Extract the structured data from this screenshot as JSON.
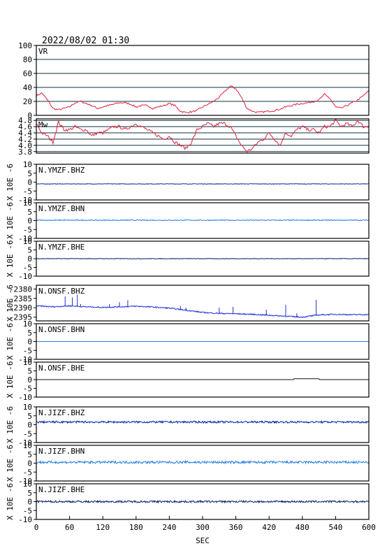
{
  "header": {
    "datetime": "2022/08/02 01:30"
  },
  "chart_data": {
    "type": "line",
    "x_unit_label": "SEC",
    "xlim": [
      0,
      600
    ],
    "xticks": [
      0,
      60,
      120,
      180,
      240,
      300,
      360,
      420,
      480,
      540,
      600
    ],
    "panels": [
      {
        "id": "vr",
        "label": "VR",
        "color": "#e0203a",
        "ylim": [
          0,
          100
        ],
        "yticks": [
          0,
          20,
          40,
          60,
          80,
          100
        ],
        "ytick_labels": [
          "0",
          "20",
          "40",
          "60",
          "80",
          "100"
        ],
        "grid": true,
        "ylabel": "",
        "series": {
          "x": [
            0,
            10,
            20,
            30,
            40,
            50,
            60,
            70,
            80,
            90,
            100,
            110,
            120,
            130,
            140,
            150,
            160,
            170,
            180,
            190,
            200,
            210,
            220,
            230,
            240,
            250,
            260,
            270,
            280,
            290,
            300,
            310,
            320,
            330,
            340,
            350,
            360,
            370,
            380,
            390,
            400,
            410,
            420,
            430,
            440,
            450,
            460,
            470,
            480,
            490,
            500,
            510,
            520,
            530,
            540,
            550,
            560,
            570,
            580,
            590,
            600
          ],
          "y": [
            28,
            32,
            22,
            10,
            8,
            10,
            12,
            18,
            20,
            17,
            14,
            10,
            12,
            14,
            16,
            18,
            18,
            16,
            12,
            14,
            14,
            10,
            12,
            14,
            17,
            14,
            6,
            4,
            5,
            7,
            12,
            16,
            20,
            26,
            34,
            42,
            38,
            26,
            10,
            6,
            4,
            5,
            6,
            7,
            9,
            12,
            14,
            16,
            17,
            18,
            20,
            22,
            30,
            24,
            12,
            10,
            14,
            18,
            22,
            28,
            35
          ]
        }
      },
      {
        "id": "mw",
        "label": "Mw",
        "color": "#e0203a",
        "ylim": [
          3.75,
          4.85
        ],
        "yticks": [
          3.8,
          4.0,
          4.2,
          4.4,
          4.6,
          4.8
        ],
        "ytick_labels": [
          "3.8",
          "4.0",
          "4.2",
          "4.4",
          "4.6",
          "4.8"
        ],
        "grid": true,
        "ylabel": "",
        "series": {
          "x": [
            0,
            10,
            20,
            30,
            40,
            50,
            60,
            70,
            80,
            90,
            100,
            110,
            120,
            130,
            140,
            150,
            160,
            170,
            180,
            190,
            200,
            210,
            220,
            230,
            240,
            250,
            260,
            270,
            280,
            290,
            300,
            310,
            320,
            330,
            340,
            350,
            360,
            370,
            380,
            390,
            400,
            410,
            420,
            430,
            440,
            450,
            460,
            470,
            480,
            490,
            500,
            510,
            520,
            530,
            540,
            550,
            560,
            570,
            580,
            590,
            600
          ],
          "y": [
            4.7,
            4.4,
            4.3,
            4.1,
            4.75,
            4.5,
            4.5,
            4.6,
            4.5,
            4.5,
            4.3,
            4.4,
            4.4,
            4.5,
            4.6,
            4.6,
            4.5,
            4.6,
            4.7,
            4.6,
            4.5,
            4.4,
            4.3,
            4.2,
            4.3,
            4.1,
            4.0,
            3.9,
            4.1,
            4.5,
            4.6,
            4.7,
            4.6,
            4.7,
            4.7,
            4.6,
            4.3,
            4.0,
            3.8,
            3.9,
            4.1,
            4.2,
            4.4,
            4.2,
            4.0,
            4.4,
            4.3,
            4.5,
            4.6,
            4.5,
            4.5,
            4.4,
            4.6,
            4.6,
            4.8,
            4.6,
            4.7,
            4.6,
            4.8,
            4.6,
            4.6
          ]
        }
      },
      {
        "id": "ymzf_bhz",
        "label": "N.YMZF.BHZ",
        "color": "#0a2aa8",
        "ylim": [
          -10,
          10
        ],
        "yticks": [
          -10,
          -5,
          0,
          5,
          10
        ],
        "ytick_labels": [
          "-10",
          "-5",
          "0",
          "5",
          "10"
        ],
        "ylabel": "X 10E -6",
        "baseline": -1.0,
        "noise": 0.15,
        "spikes": []
      },
      {
        "id": "ymzf_bhn",
        "label": "N.YMZF.BHN",
        "color": "#2a7fe0",
        "ylim": [
          -10,
          10
        ],
        "yticks": [
          -10,
          -5,
          0,
          5,
          10
        ],
        "ytick_labels": [
          "-10",
          "-5",
          "0",
          "5",
          "10"
        ],
        "ylabel": "X 10E -6",
        "baseline": 0.2,
        "noise": 0.25,
        "spikes": []
      },
      {
        "id": "ymzf_bhe",
        "label": "N.YMZF.BHE",
        "color": "#0a1f6e",
        "ylim": [
          -10,
          10
        ],
        "yticks": [
          -10,
          -5,
          0,
          5,
          10
        ],
        "ytick_labels": [
          "-10",
          "-5",
          "0",
          "5",
          "10"
        ],
        "ylabel": "X 10E -6",
        "baseline": 0.0,
        "noise": 0.15,
        "spikes": []
      },
      {
        "id": "onsf_bhz",
        "label": "N.ONSF.BHZ",
        "color": "#1e2fd0",
        "ylim": [
          -2397,
          -2378
        ],
        "yticks": [
          -2395,
          -2390,
          -2385,
          -2380
        ],
        "ytick_labels": [
          "-2395",
          "-2390",
          "-2385",
          "-2380"
        ],
        "ylabel": "X 10E -6",
        "trend_x": [
          0,
          30,
          60,
          90,
          120,
          150,
          180,
          210,
          240,
          270,
          300,
          330,
          360,
          390,
          420,
          450,
          480,
          510,
          540,
          570,
          600
        ],
        "trend_y": [
          -2389,
          -2389.5,
          -2389,
          -2389.5,
          -2389.8,
          -2389.5,
          -2389.2,
          -2389.6,
          -2390.2,
          -2391.3,
          -2392.5,
          -2393,
          -2393.2,
          -2393.5,
          -2394,
          -2394.5,
          -2395,
          -2393.8,
          -2393.5,
          -2393.7,
          -2393.6
        ],
        "noise": 0.3,
        "spikes": [
          [
            52,
            -2384
          ],
          [
            65,
            -2384.5
          ],
          [
            74,
            -2383
          ],
          [
            80,
            -2388
          ],
          [
            132,
            -2388
          ],
          [
            150,
            -2387
          ],
          [
            165,
            -2386
          ],
          [
            260,
            -2389
          ],
          [
            270,
            -2390
          ],
          [
            330,
            -2390
          ],
          [
            355,
            -2389.5
          ],
          [
            415,
            -2391
          ],
          [
            450,
            -2388.5
          ],
          [
            470,
            -2393
          ],
          [
            505,
            -2385.8
          ]
        ]
      },
      {
        "id": "onsf_bhn",
        "label": "N.ONSF.BHN",
        "color": "#2a7fe0",
        "ylim": [
          -10,
          10
        ],
        "yticks": [
          -10,
          -5,
          0,
          5,
          10
        ],
        "ytick_labels": [
          "-10",
          "-5",
          "0",
          "5",
          "10"
        ],
        "ylabel": "X 10E -6",
        "baseline": 0.0,
        "noise": 0.02,
        "spikes": []
      },
      {
        "id": "onsf_bhe",
        "label": "N.ONSF.BHE",
        "color": "#111111",
        "ylim": [
          -10,
          10
        ],
        "yticks": [
          -10,
          -5,
          0,
          5,
          10
        ],
        "ytick_labels": [
          "-10",
          "-5",
          "0",
          "5",
          "10"
        ],
        "ylabel": "X 10E -6",
        "baseline": 0.0,
        "noise": 0.0,
        "spikes": [],
        "step": [
          465,
          510,
          0.5
        ]
      },
      {
        "id": "jizf_bhz",
        "label": "N.JIZF.BHZ",
        "color": "#0a2aa8",
        "ylim": [
          -10,
          10
        ],
        "yticks": [
          -10,
          -5,
          0,
          5,
          10
        ],
        "ytick_labels": [
          "-10",
          "-5",
          "0",
          "5",
          "10"
        ],
        "ylabel": "X 10E -6",
        "baseline": 1.5,
        "noise": 0.55,
        "spikes": []
      },
      {
        "id": "jizf_bhn",
        "label": "N.JIZF.BHN",
        "color": "#2a7fe0",
        "ylim": [
          -10,
          10
        ],
        "yticks": [
          -10,
          -5,
          0,
          5,
          10
        ],
        "ytick_labels": [
          "-10",
          "-5",
          "0",
          "5",
          "10"
        ],
        "ylabel": "X 10E -6",
        "baseline": 0.5,
        "noise": 0.7,
        "spikes": []
      },
      {
        "id": "jizf_bhe",
        "label": "N.JIZF.BHE",
        "color": "#0a1f6e",
        "ylim": [
          -10,
          10
        ],
        "yticks": [
          -10,
          -5,
          0,
          5,
          10
        ],
        "ytick_labels": [
          "-10",
          "-5",
          "0",
          "5",
          "10"
        ],
        "ylabel": "X 10E -6",
        "baseline": 0.0,
        "noise": 0.55,
        "spikes": []
      }
    ]
  }
}
